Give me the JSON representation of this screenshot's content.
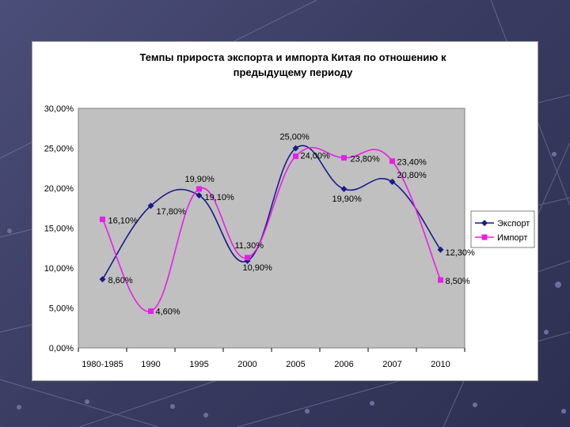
{
  "chart_data": {
    "type": "line",
    "title_line1": "Темпы прироста экспорта и импорта Китая по отношению к",
    "title_line2": "предыдущему периоду",
    "categories": [
      "1980-1985",
      "1990",
      "1995",
      "2000",
      "2005",
      "2006",
      "2007",
      "2010"
    ],
    "y_ticks": [
      "0,00%",
      "5,00%",
      "10,00%",
      "15,00%",
      "20,00%",
      "25,00%",
      "30,00%"
    ],
    "ylim": [
      0,
      30
    ],
    "series": [
      {
        "name": "Экспорт",
        "color": "#1a1a8c",
        "marker": "diamond",
        "values": [
          8.6,
          17.8,
          19.1,
          10.9,
          25.0,
          19.9,
          20.8,
          12.3
        ],
        "labels": [
          "8,60%",
          "17,80%",
          "19,10%",
          "10,90%",
          "25,00%",
          "19,90%",
          "20,80%",
          "12,30%"
        ]
      },
      {
        "name": "Импорт",
        "color": "#e81ee8",
        "marker": "square",
        "values": [
          16.1,
          4.6,
          19.9,
          11.3,
          24.0,
          23.8,
          23.4,
          8.5
        ],
        "labels": [
          "16,10%",
          "4,60%",
          "19,90%",
          "11,30%",
          "24,00%",
          "23,80%",
          "23,40%",
          "8,50%"
        ]
      }
    ],
    "plot_bg": "#c0c0c0",
    "legend_position": "right"
  }
}
